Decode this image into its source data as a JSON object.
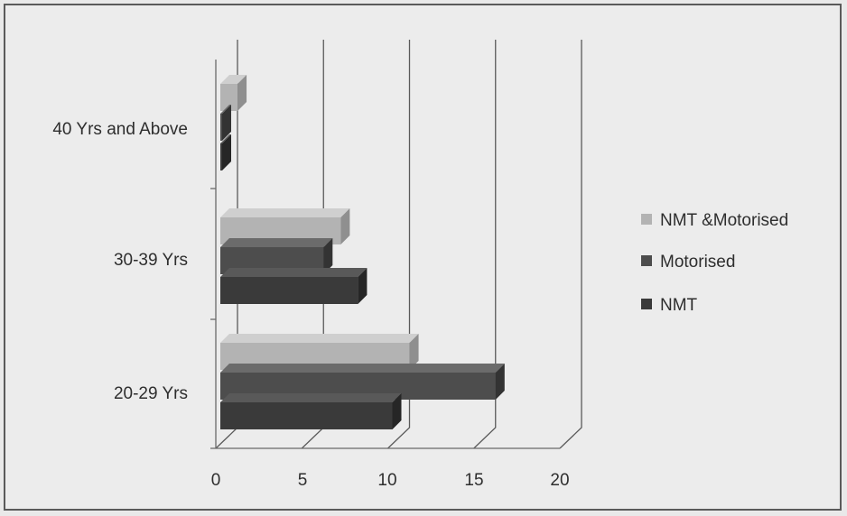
{
  "chart_data": {
    "type": "bar",
    "orientation": "horizontal",
    "style": "3d-clustered",
    "categories": [
      "40 Yrs and Above",
      "30-39 Yrs",
      "20-29 Yrs"
    ],
    "series": [
      {
        "name": "NMT &Motorised",
        "color": "#b3b3b3",
        "values": [
          1,
          7,
          11
        ]
      },
      {
        "name": "Motorised",
        "color": "#4d4d4d",
        "values": [
          0,
          6,
          16
        ]
      },
      {
        "name": "NMT",
        "color": "#3a3a3a",
        "values": [
          0,
          8,
          10
        ]
      }
    ],
    "xlim": [
      0,
      20
    ],
    "xticks": [
      "0",
      "5",
      "10",
      "15",
      "20"
    ],
    "grid": true,
    "legend_position": "right"
  }
}
